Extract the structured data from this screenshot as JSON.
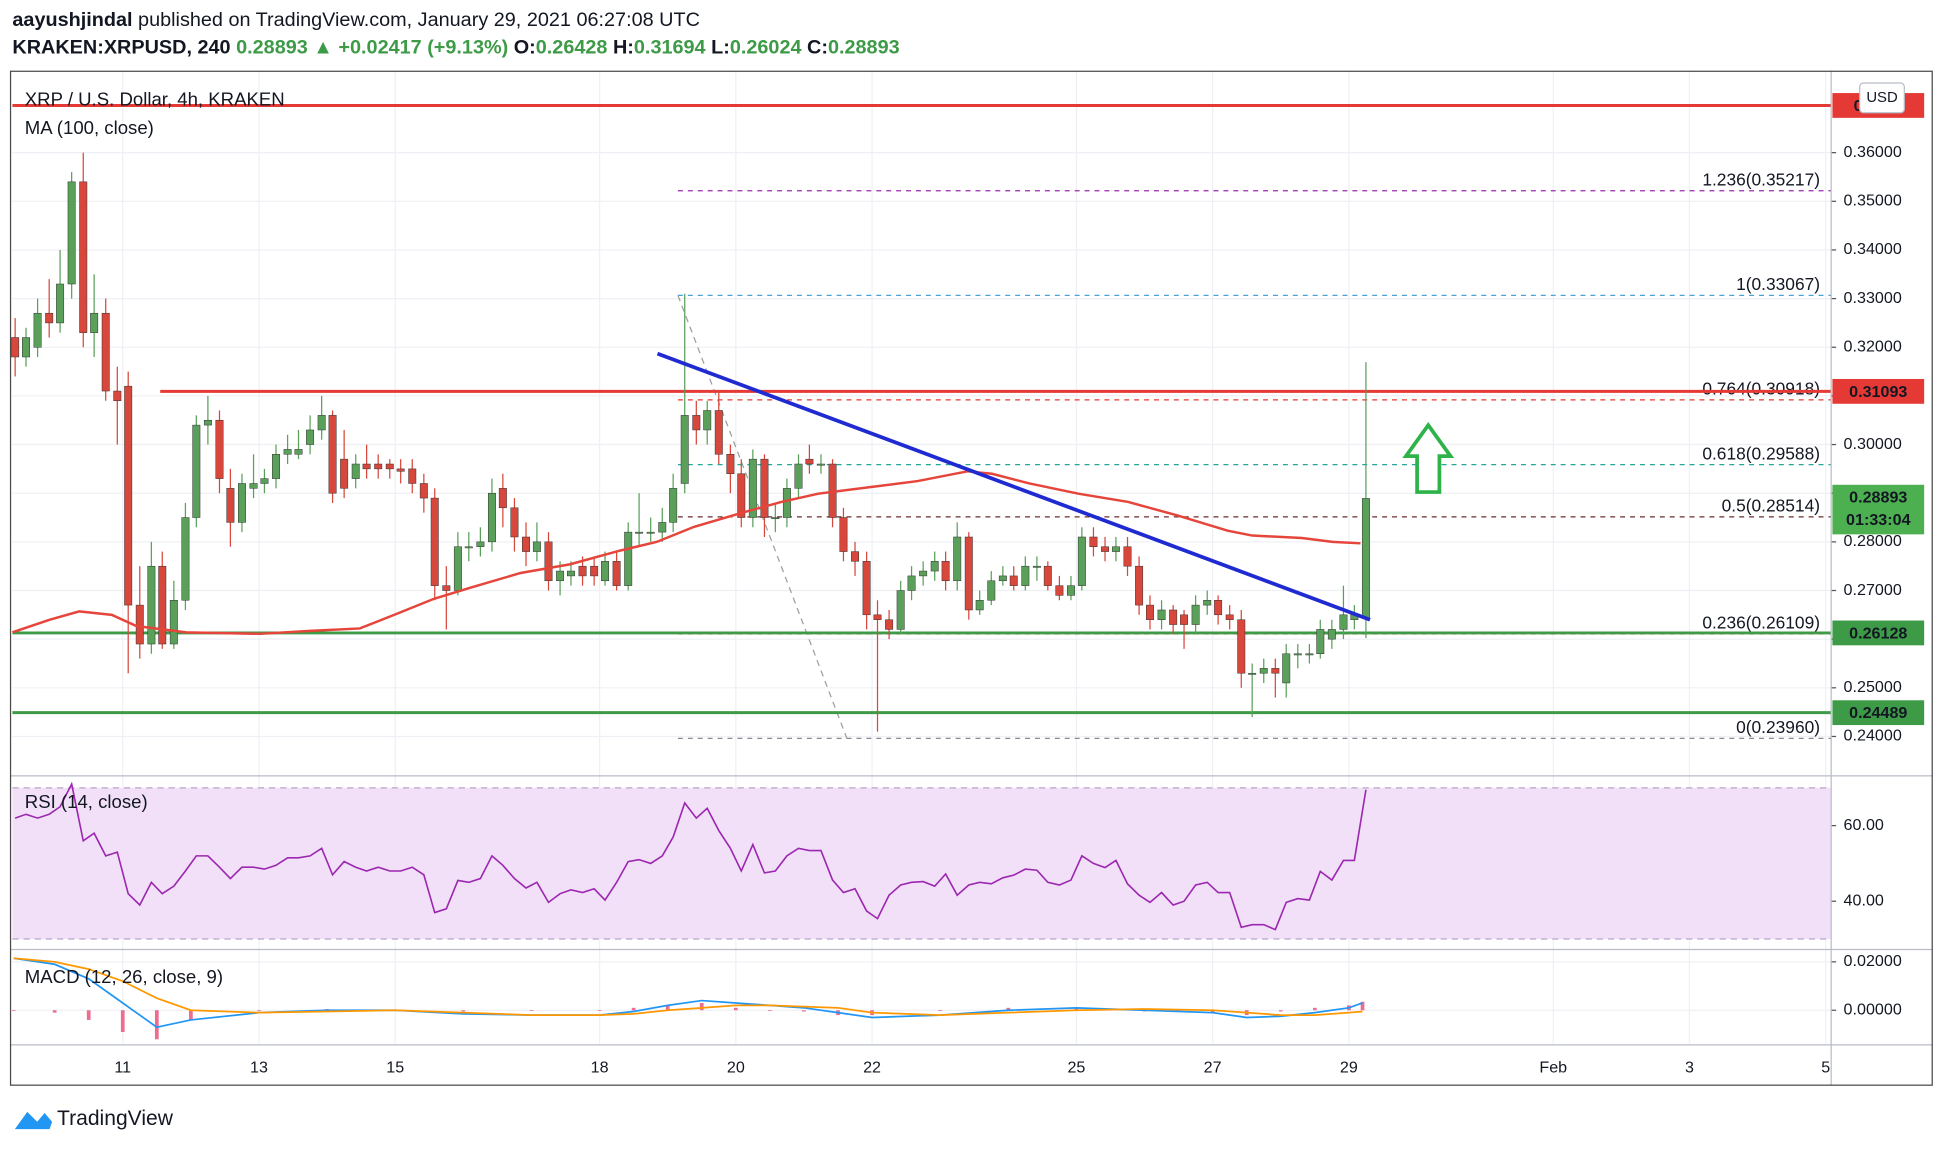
{
  "header": {
    "line1": [
      {
        "text": "aayushjindal",
        "bold": true,
        "color": "#131722"
      },
      {
        "text": " published on TradingView.com, January 29, 2021 06:27:08 UTC",
        "bold": false,
        "color": "#131722"
      }
    ],
    "line2": [
      {
        "text": "KRAKEN:XRPUSD, 240 ",
        "bold": true,
        "color": "#131722"
      },
      {
        "text": "0.28893 ▲ +0.02417 (+9.13%) ",
        "bold": true,
        "color": "#3d9b47"
      },
      {
        "text": "O:",
        "bold": true,
        "color": "#131722"
      },
      {
        "text": "0.26428 ",
        "bold": true,
        "color": "#3d9b47"
      },
      {
        "text": "H:",
        "bold": true,
        "color": "#131722"
      },
      {
        "text": "0.31694 ",
        "bold": true,
        "color": "#3d9b47"
      },
      {
        "text": "L:",
        "bold": true,
        "color": "#131722"
      },
      {
        "text": "0.26024 ",
        "bold": true,
        "color": "#3d9b47"
      },
      {
        "text": "C:",
        "bold": true,
        "color": "#131722"
      },
      {
        "text": "0.28893",
        "bold": true,
        "color": "#3d9b47"
      }
    ]
  },
  "footer": {
    "brand": "TradingView"
  },
  "chart_data": [
    {
      "type": "candlestick",
      "title": "XRP / U.S. Dollar, 4h, KRAKEN",
      "currency": "USD",
      "up_color": "#5aa05a",
      "down_color": "#d8473b",
      "grid": true,
      "x": [
        9.42,
        9.58,
        9.75,
        9.92,
        10.08,
        10.25,
        10.42,
        10.58,
        10.75,
        10.92,
        11.08,
        11.25,
        11.42,
        11.58,
        11.75,
        11.92,
        12.08,
        12.25,
        12.42,
        12.58,
        12.75,
        12.92,
        13.08,
        13.25,
        13.42,
        13.58,
        13.75,
        13.92,
        14.08,
        14.25,
        14.42,
        14.58,
        14.75,
        14.92,
        15.08,
        15.25,
        15.42,
        15.58,
        15.75,
        15.92,
        16.08,
        16.25,
        16.42,
        16.58,
        16.75,
        16.92,
        17.08,
        17.25,
        17.42,
        17.58,
        17.75,
        17.92,
        18.08,
        18.25,
        18.42,
        18.58,
        18.75,
        18.92,
        19.08,
        19.25,
        19.42,
        19.58,
        19.75,
        19.92,
        20.08,
        20.25,
        20.42,
        20.58,
        20.75,
        20.92,
        21.08,
        21.25,
        21.42,
        21.58,
        21.75,
        21.92,
        22.08,
        22.25,
        22.42,
        22.58,
        22.75,
        22.92,
        23.08,
        23.25,
        23.42,
        23.58,
        23.75,
        23.92,
        24.08,
        24.25,
        24.42,
        24.58,
        24.75,
        24.92,
        25.08,
        25.25,
        25.42,
        25.58,
        25.75,
        25.92,
        26.08,
        26.25,
        26.42,
        26.58,
        26.75,
        26.92,
        27.08,
        27.25,
        27.42,
        27.58,
        27.75,
        27.92,
        28.08,
        28.25,
        28.42,
        28.58,
        28.75,
        28.92,
        29.08,
        29.25
      ],
      "open": [
        0.322,
        0.318,
        0.32,
        0.327,
        0.325,
        0.333,
        0.354,
        0.323,
        0.327,
        0.311,
        0.312,
        0.267,
        0.259,
        0.275,
        0.259,
        0.268,
        0.285,
        0.304,
        0.305,
        0.291,
        0.284,
        0.291,
        0.292,
        0.293,
        0.298,
        0.298,
        0.3,
        0.303,
        0.306,
        0.297,
        0.293,
        0.296,
        0.296,
        0.296,
        0.295,
        0.295,
        0.292,
        0.289,
        0.271,
        0.27,
        0.279,
        0.279,
        0.28,
        0.291,
        0.287,
        0.281,
        0.278,
        0.28,
        0.272,
        0.273,
        0.275,
        0.275,
        0.272,
        0.276,
        0.271,
        0.282,
        0.282,
        0.282,
        0.284,
        0.292,
        0.306,
        0.303,
        0.307,
        0.298,
        0.294,
        0.285,
        0.297,
        0.285,
        0.285,
        0.291,
        0.297,
        0.296,
        0.296,
        0.285,
        0.278,
        0.276,
        0.265,
        0.264,
        0.262,
        0.27,
        0.273,
        0.274,
        0.276,
        0.272,
        0.281,
        0.266,
        0.268,
        0.272,
        0.273,
        0.271,
        0.275,
        0.275,
        0.271,
        0.269,
        0.271,
        0.281,
        0.279,
        0.278,
        0.279,
        0.275,
        0.267,
        0.264,
        0.266,
        0.265,
        0.263,
        0.267,
        0.268,
        0.265,
        0.264,
        0.253,
        0.253,
        0.254,
        0.251,
        0.257,
        0.257,
        0.257,
        0.26,
        0.262,
        0.264,
        0.26428
      ],
      "high": [
        0.326,
        0.324,
        0.33,
        0.334,
        0.34,
        0.356,
        0.36,
        0.335,
        0.33,
        0.316,
        0.315,
        0.275,
        0.28,
        0.278,
        0.272,
        0.288,
        0.306,
        0.31,
        0.307,
        0.295,
        0.294,
        0.298,
        0.295,
        0.3,
        0.302,
        0.303,
        0.306,
        0.31,
        0.307,
        0.303,
        0.298,
        0.3,
        0.298,
        0.297,
        0.297,
        0.297,
        0.294,
        0.291,
        0.275,
        0.282,
        0.282,
        0.283,
        0.293,
        0.294,
        0.289,
        0.284,
        0.284,
        0.282,
        0.276,
        0.276,
        0.277,
        0.277,
        0.278,
        0.278,
        0.284,
        0.29,
        0.285,
        0.287,
        0.294,
        0.331,
        0.309,
        0.309,
        0.311,
        0.3,
        0.297,
        0.299,
        0.298,
        0.288,
        0.293,
        0.298,
        0.3,
        0.298,
        0.297,
        0.287,
        0.28,
        0.278,
        0.268,
        0.266,
        0.272,
        0.275,
        0.276,
        0.278,
        0.278,
        0.284,
        0.282,
        0.27,
        0.274,
        0.275,
        0.275,
        0.277,
        0.277,
        0.276,
        0.273,
        0.273,
        0.283,
        0.283,
        0.281,
        0.281,
        0.281,
        0.277,
        0.269,
        0.268,
        0.267,
        0.266,
        0.269,
        0.27,
        0.269,
        0.267,
        0.266,
        0.255,
        0.256,
        0.256,
        0.259,
        0.259,
        0.259,
        0.264,
        0.264,
        0.271,
        0.267,
        0.31694
      ],
      "low": [
        0.314,
        0.316,
        0.318,
        0.322,
        0.323,
        0.33,
        0.32,
        0.318,
        0.309,
        0.3,
        0.253,
        0.256,
        0.257,
        0.258,
        0.258,
        0.266,
        0.283,
        0.3,
        0.29,
        0.279,
        0.282,
        0.289,
        0.29,
        0.291,
        0.296,
        0.297,
        0.298,
        0.301,
        0.288,
        0.289,
        0.291,
        0.293,
        0.293,
        0.293,
        0.292,
        0.29,
        0.286,
        0.268,
        0.262,
        0.269,
        0.276,
        0.277,
        0.278,
        0.283,
        0.278,
        0.275,
        0.276,
        0.27,
        0.269,
        0.271,
        0.271,
        0.271,
        0.271,
        0.27,
        0.27,
        0.279,
        0.28,
        0.28,
        0.282,
        0.29,
        0.3,
        0.3,
        0.296,
        0.29,
        0.283,
        0.283,
        0.281,
        0.282,
        0.283,
        0.289,
        0.294,
        0.294,
        0.283,
        0.276,
        0.273,
        0.262,
        0.241,
        0.26,
        0.261,
        0.268,
        0.271,
        0.272,
        0.27,
        0.27,
        0.264,
        0.265,
        0.267,
        0.271,
        0.27,
        0.27,
        0.272,
        0.27,
        0.268,
        0.268,
        0.27,
        0.277,
        0.276,
        0.276,
        0.273,
        0.265,
        0.262,
        0.262,
        0.261,
        0.258,
        0.261,
        0.265,
        0.263,
        0.262,
        0.25,
        0.244,
        0.251,
        0.248,
        0.248,
        0.254,
        0.255,
        0.256,
        0.258,
        0.26,
        0.262,
        0.26024
      ],
      "close": [
        0.318,
        0.322,
        0.327,
        0.325,
        0.333,
        0.354,
        0.323,
        0.327,
        0.311,
        0.309,
        0.267,
        0.259,
        0.275,
        0.259,
        0.268,
        0.285,
        0.304,
        0.305,
        0.293,
        0.284,
        0.292,
        0.292,
        0.293,
        0.298,
        0.299,
        0.299,
        0.303,
        0.306,
        0.29,
        0.291,
        0.296,
        0.295,
        0.295,
        0.295,
        0.2945,
        0.292,
        0.289,
        0.271,
        0.27,
        0.279,
        0.279,
        0.28,
        0.29,
        0.287,
        0.281,
        0.278,
        0.28,
        0.272,
        0.274,
        0.274,
        0.273,
        0.273,
        0.276,
        0.271,
        0.282,
        0.282,
        0.282,
        0.284,
        0.291,
        0.306,
        0.303,
        0.307,
        0.298,
        0.294,
        0.285,
        0.297,
        0.285,
        0.285,
        0.291,
        0.296,
        0.296,
        0.296,
        0.285,
        0.278,
        0.276,
        0.265,
        0.264,
        0.262,
        0.27,
        0.273,
        0.274,
        0.276,
        0.272,
        0.281,
        0.266,
        0.268,
        0.272,
        0.273,
        0.271,
        0.275,
        0.275,
        0.271,
        0.269,
        0.271,
        0.281,
        0.279,
        0.278,
        0.279,
        0.275,
        0.267,
        0.264,
        0.266,
        0.263,
        0.263,
        0.267,
        0.268,
        0.265,
        0.264,
        0.253,
        0.253,
        0.254,
        0.253,
        0.257,
        0.257,
        0.257,
        0.262,
        0.262,
        0.265,
        0.265,
        0.28893
      ],
      "xlim": [
        9.38,
        36.08
      ],
      "xticks": [
        11,
        13,
        15,
        18,
        20,
        22,
        25,
        27,
        29,
        {
          "value": 32,
          "label": "Feb"
        },
        {
          "value": 34,
          "label": "3"
        },
        {
          "value": 36,
          "label": "5"
        }
      ],
      "ylim": [
        0.2324,
        0.3766
      ],
      "yticks": [
        {
          "value": 0.24,
          "label": "0.24000"
        },
        {
          "value": 0.25,
          "label": "0.25000"
        },
        {
          "value": 0.26,
          "label": "0.26000"
        },
        {
          "value": 0.27,
          "label": "0.27000"
        },
        {
          "value": 0.28,
          "label": "0.28000"
        },
        {
          "value": 0.29,
          "label": "0.29000"
        },
        {
          "value": 0.3,
          "label": "0.30000"
        },
        {
          "value": 0.31,
          "label": "0.31000"
        },
        {
          "value": 0.32,
          "label": "0.32000"
        },
        {
          "value": 0.33,
          "label": "0.33000"
        },
        {
          "value": 0.34,
          "label": "0.34000"
        },
        {
          "value": 0.35,
          "label": "0.35000"
        },
        {
          "value": 0.36,
          "label": "0.36000"
        }
      ],
      "overlays": [
        {
          "name": "MA (100, close)",
          "color": "#e5453b",
          "x": [
            9.38,
            9.93,
            10.36,
            10.84,
            11.2,
            11.93,
            13.02,
            13.75,
            14.48,
            15.02,
            15.57,
            16.11,
            16.84,
            17.57,
            18.3,
            18.84,
            19.39,
            20.12,
            20.67,
            21.21,
            21.94,
            22.67,
            23.4,
            23.76,
            24.31,
            25.03,
            25.76,
            26.49,
            27.22,
            27.58,
            28.31,
            28.76,
            29.17
          ],
          "values": [
            0.2614,
            0.264,
            0.2657,
            0.265,
            0.2627,
            0.2614,
            0.2611,
            0.2617,
            0.2622,
            0.2652,
            0.2683,
            0.2706,
            0.2736,
            0.2754,
            0.2782,
            0.28,
            0.2831,
            0.2861,
            0.2882,
            0.2899,
            0.2912,
            0.2925,
            0.2945,
            0.294,
            0.292,
            0.2899,
            0.2882,
            0.2854,
            0.2823,
            0.2813,
            0.2808,
            0.28,
            0.2797
          ]
        }
      ],
      "trendline": {
        "color": "#1f2bd1",
        "x": [
          18.85,
          29.31
        ],
        "values": [
          0.3187,
          0.264
        ]
      },
      "levels": [
        {
          "value": 0.3697,
          "color": "#e53935",
          "x_start": 9.38
        },
        {
          "value": 0.31093,
          "color": "#e53935",
          "x_start": 11.55
        },
        {
          "value": 0.26128,
          "color": "#3d9b47",
          "x_start": 9.38
        },
        {
          "value": 0.24489,
          "color": "#3d9b47",
          "x_start": 9.38
        }
      ],
      "fib": {
        "x_start": 19.15,
        "trend": {
          "x": [
            19.15,
            21.63
          ],
          "values": [
            0.33067,
            0.2396
          ]
        },
        "levels": [
          {
            "value": 0.35217,
            "label": "1.236(0.35217)",
            "color": "#9c27b0"
          },
          {
            "value": 0.33067,
            "label": "1(0.33067)",
            "color": "#4aa3d6"
          },
          {
            "value": 0.30918,
            "label": "0.764(0.30918)",
            "color": "#e53935"
          },
          {
            "value": 0.29588,
            "label": "0.618(0.29588)",
            "color": "#26a69a"
          },
          {
            "value": 0.28514,
            "label": "0.5(0.28514)",
            "color": "#6d2d2d"
          },
          {
            "value": 0.26109,
            "label": "0.236(0.26109)",
            "color": "#e53935"
          },
          {
            "value": 0.2396,
            "label": "0(0.23960)",
            "color": "#8a8a8a"
          }
        ]
      },
      "last_price": {
        "value": 0.28893,
        "countdown": "01:33:04",
        "color": "#4caf50"
      }
    },
    {
      "type": "line",
      "title": "RSI (14, close)",
      "color": "#9c27b0",
      "band": [
        30,
        70
      ],
      "band_color": "#f1e0f7",
      "values": [
        62,
        63,
        62,
        63,
        65,
        71,
        56,
        58,
        52,
        53,
        42,
        39,
        45,
        42,
        44,
        48,
        52,
        52,
        49,
        46,
        49,
        49,
        48.5,
        49.5,
        51.5,
        51.5,
        52,
        54,
        47,
        50.5,
        49,
        48,
        49,
        48,
        48,
        49,
        47,
        37,
        38,
        45.5,
        45,
        46,
        52,
        49.5,
        46,
        43.5,
        45,
        39.7,
        42,
        43,
        42.3,
        43.3,
        40.3,
        45,
        50.5,
        51,
        50,
        52,
        57,
        66,
        62,
        64.6,
        58.7,
        54,
        48,
        55,
        47.5,
        48,
        52,
        54,
        53.4,
        53.4,
        45.6,
        42.3,
        43.3,
        37.4,
        35.4,
        41.6,
        44.3,
        45,
        45.2,
        44,
        47.2,
        41.6,
        44.3,
        45,
        44.6,
        46.2,
        46.9,
        48.5,
        48.2,
        45,
        44.3,
        45.6,
        52,
        50,
        48.9,
        50.8,
        44.6,
        41.6,
        39.7,
        42.3,
        39,
        40,
        44.3,
        45,
        42.3,
        42.3,
        33.1,
        33.8,
        33.8,
        32.5,
        39.7,
        40.7,
        40.3,
        47.9,
        45.6,
        50.8,
        50.8,
        69.5
      ],
      "ylim": [
        27.9,
        72.5
      ],
      "yticks": [
        {
          "value": 40,
          "label": "40.00"
        },
        {
          "value": 60,
          "label": "60.00"
        }
      ]
    },
    {
      "type": "line",
      "title": "MACD (12, 26, close, 9)",
      "x": [
        9.4,
        10,
        10.5,
        11,
        11.5,
        12,
        13,
        14,
        15,
        16,
        17,
        18,
        18.5,
        19,
        19.5,
        20,
        20.5,
        21,
        21.5,
        22,
        23,
        24,
        25,
        26,
        27,
        27.5,
        28,
        28.5,
        29,
        29.2
      ],
      "series": [
        {
          "color": "#2196f3",
          "values": [
            0.0215,
            0.019,
            0.013,
            0.003,
            -0.007,
            -0.004,
            -0.001,
            0,
            0,
            -0.0015,
            -0.002,
            -0.002,
            -0.0005,
            0.002,
            0.004,
            0.003,
            0.002,
            0.001,
            -0.001,
            -0.003,
            -0.002,
            0,
            0.001,
            0,
            -0.001,
            -0.003,
            -0.0025,
            -0.001,
            0.001,
            0.003
          ]
        },
        {
          "color": "#ff9800",
          "values": [
            0.0215,
            0.02,
            0.017,
            0.012,
            0.005,
            0,
            -0.001,
            -0.0005,
            0,
            -0.001,
            -0.002,
            -0.002,
            -0.0015,
            0,
            0.001,
            0.002,
            0.002,
            0.0015,
            0.001,
            -0.001,
            -0.002,
            -0.001,
            0,
            0.0005,
            0,
            -0.001,
            -0.002,
            -0.002,
            -0.001,
            -0.0005
          ]
        }
      ],
      "histogram": {
        "color": "#ec6d8f",
        "values": [
          0,
          -0.001,
          -0.004,
          -0.009,
          -0.012,
          -0.004,
          0,
          0.0005,
          0,
          -0.0005,
          0,
          0,
          0.001,
          0.002,
          0.003,
          0.001,
          0,
          -0.0005,
          -0.002,
          -0.002,
          0,
          0.001,
          0.001,
          -0.0005,
          -0.001,
          -0.002,
          -0.0005,
          0.001,
          0.002,
          0.0035
        ]
      },
      "ylim": [
        -0.0138,
        0.0241
      ],
      "yticks": [
        {
          "value": 0.02,
          "label": "0.02000"
        },
        {
          "value": 0,
          "label": "0.00000"
        }
      ]
    }
  ]
}
